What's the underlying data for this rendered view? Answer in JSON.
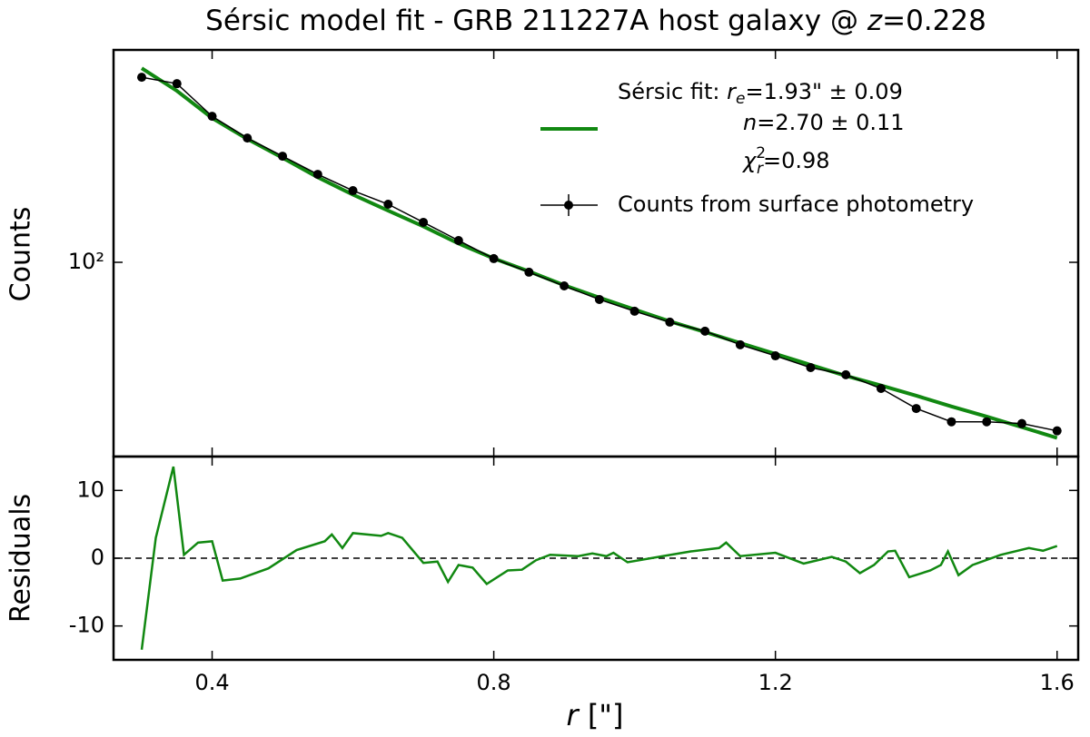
{
  "chart_data": [
    {
      "type": "line",
      "title": [
        "Sérsic model fit - GRB 211227A host galaxy @ ",
        "z",
        "=0.228"
      ],
      "ylabel": "Counts",
      "log_y": true,
      "xlim": [
        0.26,
        1.63
      ],
      "ylim": [
        37.3,
        294
      ],
      "yticks": [
        {
          "value": 100,
          "label": "10²"
        }
      ],
      "x": [
        0.3,
        0.35,
        0.4,
        0.45,
        0.5,
        0.55,
        0.6,
        0.65,
        0.7,
        0.75,
        0.8,
        0.85,
        0.9,
        0.95,
        1.0,
        1.05,
        1.1,
        1.15,
        1.2,
        1.25,
        1.3,
        1.35,
        1.4,
        1.45,
        1.5,
        1.55,
        1.6
      ],
      "series": [
        {
          "color": "#118811",
          "style": "line",
          "values": [
            267.9,
            238.8,
            208,
            187,
            170,
            154,
            141,
            130,
            120,
            110,
            102,
            95.5,
            89,
            83.6,
            78.7,
            74.1,
            70.2,
            66.4,
            62.8,
            59.4,
            56.2,
            53.5,
            50.8,
            48.1,
            45.7,
            43.3,
            41.0
          ]
        },
        {
          "color": "#000000",
          "style": "points",
          "values": [
            255.9,
            247.7,
            209.9,
            187.9,
            171.4,
            156.3,
            143.9,
            134.3,
            122.5,
            111.7,
            101.9,
            95.1,
            88.7,
            82.8,
            78.0,
            73.8,
            70.5,
            65.8,
            62.2,
            58.6,
            56.5,
            52.7,
            47.6,
            44.5,
            44.5,
            44.1,
            42.5
          ]
        }
      ],
      "legend": {
        "corner": "upper right",
        "fit_lines": [
          [
            "Sérsic fit: ",
            "r",
            "e",
            "=1.93\" ± 0.09"
          ],
          [
            "n",
            "=2.70 ± 0.11"
          ],
          [
            "χ",
            "2",
            "r",
            "=0.98"
          ]
        ],
        "data_label": "Counts from surface photometry"
      }
    },
    {
      "type": "line",
      "ylabel": "Residuals",
      "xlabel": [
        "r",
        " [\"]"
      ],
      "xlim": [
        0.26,
        1.63
      ],
      "ylim": [
        -15,
        15
      ],
      "xticks": [
        0.4,
        0.8,
        1.2,
        1.6
      ],
      "yticks": [
        -10,
        0,
        10
      ],
      "reference_line": 0,
      "x": [
        0.3,
        0.32,
        0.345,
        0.36,
        0.38,
        0.4,
        0.415,
        0.44,
        0.48,
        0.52,
        0.56,
        0.57,
        0.585,
        0.6,
        0.64,
        0.65,
        0.67,
        0.7,
        0.72,
        0.735,
        0.75,
        0.77,
        0.79,
        0.82,
        0.84,
        0.86,
        0.88,
        0.92,
        0.94,
        0.96,
        0.97,
        0.99,
        1.04,
        1.08,
        1.12,
        1.13,
        1.15,
        1.2,
        1.24,
        1.28,
        1.3,
        1.32,
        1.34,
        1.36,
        1.37,
        1.39,
        1.42,
        1.435,
        1.445,
        1.46,
        1.48,
        1.52,
        1.56,
        1.58,
        1.6
      ],
      "series": [
        {
          "color": "#118811",
          "values": [
            -13.5,
            3,
            13.5,
            0.5,
            2.3,
            2.5,
            -3.3,
            -3,
            -1.5,
            1.2,
            2.5,
            3.5,
            1.5,
            3.7,
            3.3,
            3.7,
            3.0,
            -0.7,
            -0.5,
            -3.5,
            -1,
            -1.4,
            -3.8,
            -1.8,
            -1.7,
            -0.3,
            0.5,
            0.3,
            0.7,
            0.3,
            0.8,
            -0.6,
            0.3,
            1.0,
            1.5,
            2.3,
            0.3,
            0.8,
            -0.8,
            0.2,
            -0.5,
            -2.2,
            -1.0,
            1.0,
            1.1,
            -2.8,
            -1.8,
            -1.0,
            1.0,
            -2.5,
            -1.0,
            0.5,
            1.5,
            1.1,
            1.8
          ]
        }
      ]
    }
  ]
}
